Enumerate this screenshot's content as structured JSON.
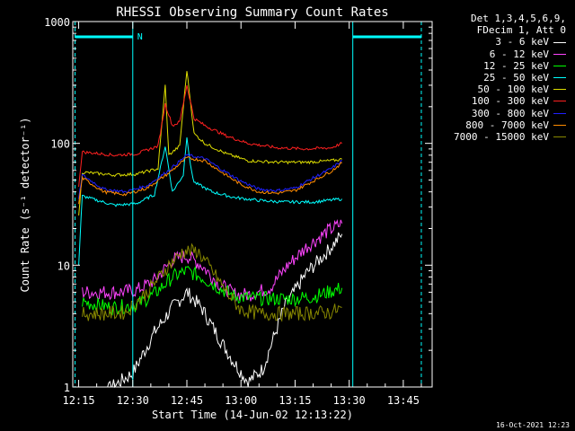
{
  "chart_data": {
    "type": "line",
    "title": "RHESSI Observing Summary Count Rates",
    "xlabel": "Start Time (14-Jun-02 12:13:22)",
    "ylabel": "Count Rate (s⁻¹ detector⁻¹)",
    "y_scale": "log",
    "ylim": [
      1,
      1000
    ],
    "xlim": [
      "12:13:22",
      "13:53:00"
    ],
    "x_ticks": [
      "12:15",
      "12:30",
      "12:45",
      "13:00",
      "13:15",
      "13:30",
      "13:45"
    ],
    "y_ticks": [
      "1",
      "10",
      "100",
      "1000"
    ],
    "night_marker": "N",
    "night_segments": [
      [
        "12:14",
        "12:30"
      ],
      [
        "13:31",
        "13:50"
      ]
    ],
    "series": [
      {
        "name": "3 - 6 keV",
        "color": "#ffffff",
        "points": [
          [
            "12:16",
            0.9
          ],
          [
            "12:22",
            0.9
          ],
          [
            "12:30",
            1.3
          ],
          [
            "12:36",
            2.8
          ],
          [
            "12:41",
            4.5
          ],
          [
            "12:45",
            6.0
          ],
          [
            "12:49",
            4.5
          ],
          [
            "12:54",
            2.5
          ],
          [
            "12:58",
            1.6
          ],
          [
            "13:02",
            1.1
          ],
          [
            "13:06",
            1.4
          ],
          [
            "13:12",
            4.5
          ],
          [
            "13:18",
            8.5
          ],
          [
            "13:24",
            13
          ],
          [
            "13:28",
            18
          ]
        ]
      },
      {
        "name": "6 - 12 keV",
        "color": "#ff44ff",
        "points": [
          [
            "12:16",
            6
          ],
          [
            "12:25",
            6
          ],
          [
            "12:31",
            6.2
          ],
          [
            "12:36",
            7.5
          ],
          [
            "12:41",
            11
          ],
          [
            "12:45",
            12
          ],
          [
            "12:49",
            10
          ],
          [
            "12:54",
            7
          ],
          [
            "12:58",
            5.8
          ],
          [
            "13:02",
            5.7
          ],
          [
            "13:08",
            6.5
          ],
          [
            "13:13",
            10
          ],
          [
            "13:18",
            14
          ],
          [
            "13:24",
            19
          ],
          [
            "13:28",
            22
          ]
        ]
      },
      {
        "name": "12 - 25 keV",
        "color": "#00ff00",
        "points": [
          [
            "12:16",
            5
          ],
          [
            "12:24",
            4.5
          ],
          [
            "12:31",
            4.7
          ],
          [
            "12:36",
            5.8
          ],
          [
            "12:41",
            8
          ],
          [
            "12:45",
            9
          ],
          [
            "12:49",
            8
          ],
          [
            "12:54",
            6.5
          ],
          [
            "12:58",
            5.6
          ],
          [
            "13:02",
            5.4
          ],
          [
            "13:08",
            5.3
          ],
          [
            "13:14",
            5.3
          ],
          [
            "13:20",
            5.5
          ],
          [
            "13:28",
            6.5
          ]
        ]
      },
      {
        "name": "25 - 50 keV",
        "color": "#00ffff",
        "points": [
          [
            "12:15",
            10
          ],
          [
            "12:16",
            37
          ],
          [
            "12:25",
            31
          ],
          [
            "12:31",
            32
          ],
          [
            "12:36",
            38
          ],
          [
            "12:39",
            95
          ],
          [
            "12:41",
            40
          ],
          [
            "12:44",
            55
          ],
          [
            "12:45",
            115
          ],
          [
            "12:46",
            65
          ],
          [
            "12:47",
            48
          ],
          [
            "12:52",
            40
          ],
          [
            "12:58",
            36
          ],
          [
            "13:05",
            34
          ],
          [
            "13:12",
            33
          ],
          [
            "13:20",
            33
          ],
          [
            "13:28",
            35
          ]
        ]
      },
      {
        "name": "50 - 100 keV",
        "color": "#dddd00",
        "points": [
          [
            "12:15",
            25
          ],
          [
            "12:16",
            58
          ],
          [
            "12:25",
            55
          ],
          [
            "12:31",
            56
          ],
          [
            "12:37",
            62
          ],
          [
            "12:39",
            300
          ],
          [
            "12:40",
            80
          ],
          [
            "12:43",
            95
          ],
          [
            "12:45",
            400
          ],
          [
            "12:47",
            120
          ],
          [
            "12:50",
            100
          ],
          [
            "12:56",
            82
          ],
          [
            "13:02",
            72
          ],
          [
            "13:10",
            70
          ],
          [
            "13:18",
            70
          ],
          [
            "13:25",
            72
          ],
          [
            "13:28",
            74
          ]
        ]
      },
      {
        "name": "100 - 300 keV",
        "color": "#ff2020",
        "points": [
          [
            "12:15",
            45
          ],
          [
            "12:16",
            85
          ],
          [
            "12:25",
            80
          ],
          [
            "12:31",
            82
          ],
          [
            "12:37",
            95
          ],
          [
            "12:39",
            210
          ],
          [
            "12:41",
            140
          ],
          [
            "12:43",
            150
          ],
          [
            "12:45",
            300
          ],
          [
            "12:47",
            160
          ],
          [
            "12:50",
            140
          ],
          [
            "12:56",
            115
          ],
          [
            "13:02",
            100
          ],
          [
            "13:10",
            92
          ],
          [
            "13:18",
            90
          ],
          [
            "13:25",
            92
          ],
          [
            "13:28",
            100
          ]
        ]
      },
      {
        "name": "300 - 800 keV",
        "color": "#2020ff",
        "points": [
          [
            "12:15",
            35
          ],
          [
            "12:16",
            55
          ],
          [
            "12:22",
            42
          ],
          [
            "12:28",
            40
          ],
          [
            "12:34",
            45
          ],
          [
            "12:40",
            60
          ],
          [
            "12:45",
            80
          ],
          [
            "12:50",
            75
          ],
          [
            "12:55",
            60
          ],
          [
            "13:00",
            49
          ],
          [
            "13:05",
            42
          ],
          [
            "13:10",
            41
          ],
          [
            "13:15",
            43
          ],
          [
            "13:20",
            52
          ],
          [
            "13:25",
            62
          ],
          [
            "13:28",
            72
          ]
        ]
      },
      {
        "name": "800 - 7000 keV",
        "color": "#ff8c00",
        "points": [
          [
            "12:15",
            32
          ],
          [
            "12:16",
            52
          ],
          [
            "12:22",
            40
          ],
          [
            "12:28",
            38
          ],
          [
            "12:34",
            43
          ],
          [
            "12:40",
            57
          ],
          [
            "12:45",
            76
          ],
          [
            "12:50",
            72
          ],
          [
            "12:55",
            57
          ],
          [
            "13:00",
            46
          ],
          [
            "13:05",
            40
          ],
          [
            "13:10",
            39
          ],
          [
            "13:15",
            41
          ],
          [
            "13:20",
            49
          ],
          [
            "13:25",
            59
          ],
          [
            "13:28",
            69
          ]
        ]
      },
      {
        "name": "7000 - 15000 keV",
        "color": "#888800",
        "points": [
          [
            "12:16",
            4
          ],
          [
            "12:22",
            4
          ],
          [
            "12:28",
            4.1
          ],
          [
            "12:34",
            6
          ],
          [
            "12:40",
            10
          ],
          [
            "12:44",
            13
          ],
          [
            "12:48",
            13
          ],
          [
            "12:52",
            9
          ],
          [
            "12:56",
            6
          ],
          [
            "13:00",
            4.3
          ],
          [
            "13:05",
            4
          ],
          [
            "13:15",
            4
          ],
          [
            "13:25",
            4.1
          ],
          [
            "13:28",
            4.5
          ]
        ]
      }
    ]
  },
  "legend": {
    "header_line1": "Det 1,3,4,5,6,9,",
    "header_line2": "FDecim 1, Att 0"
  },
  "footer_date": "16-Oct-2021 12:23"
}
